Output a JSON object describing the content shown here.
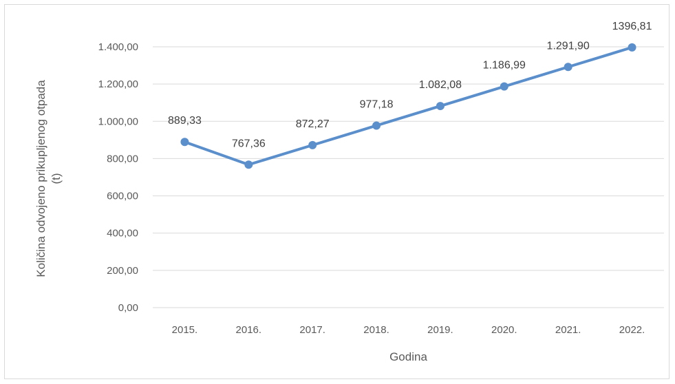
{
  "chart_data": {
    "type": "line",
    "title": "",
    "xlabel": "Godina",
    "ylabel_lines": [
      "Količina odvojeno prikupljenog otpada",
      "(t)"
    ],
    "categories": [
      "2015.",
      "2016.",
      "2017.",
      "2018.",
      "2019.",
      "2020.",
      "2021.",
      "2022."
    ],
    "series": [
      {
        "color": "#5b8fcc",
        "values": [
          889.33,
          767.36,
          872.27,
          977.18,
          1082.08,
          1186.99,
          1291.9,
          1396.81
        ],
        "data_labels": [
          "889,33",
          "767,36",
          "872,27",
          "977,18",
          "1.082,08",
          "1.186,99",
          "1.291,90",
          "1396,81"
        ]
      }
    ],
    "yticks": [
      0,
      200,
      400,
      600,
      800,
      1000,
      1200,
      1400
    ],
    "ytick_labels": [
      "0,00",
      "200,00",
      "400,00",
      "600,00",
      "800,00",
      "1.000,00",
      "1.200,00",
      "1.400,00"
    ],
    "ylim": [
      0,
      1400
    ],
    "grid": true,
    "legend": "none"
  }
}
